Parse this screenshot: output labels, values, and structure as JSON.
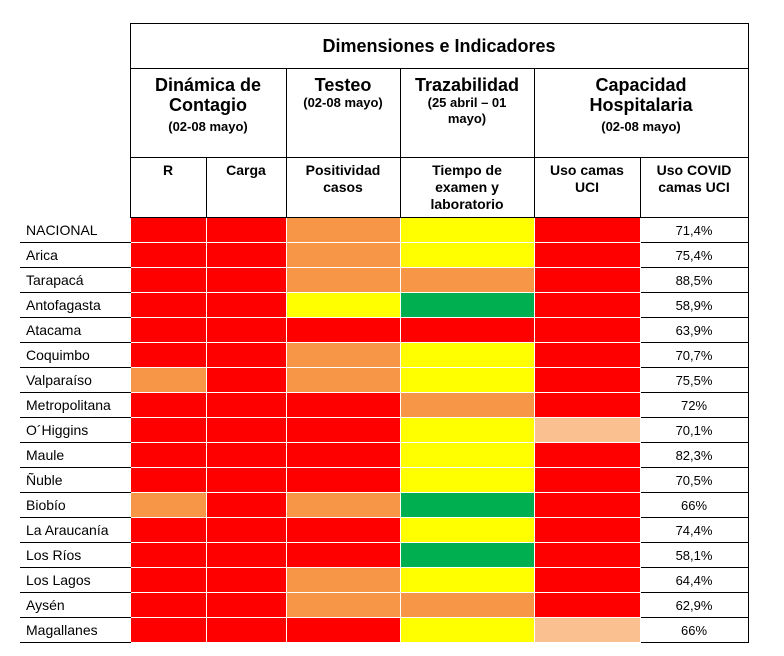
{
  "title": "Dimensiones e Indicadores",
  "groups": [
    {
      "name": "Dinámica de Contagio",
      "period": "(02-08 mayo)"
    },
    {
      "name": "Testeo",
      "period": "(02-08 mayo)"
    },
    {
      "name": "Trazabilidad",
      "period": "(25 abril – 01 mayo)"
    },
    {
      "name": "Capacidad Hospitalaria",
      "period": "(02-08 mayo)"
    }
  ],
  "columns": [
    "R",
    "Carga",
    "Positividad casos",
    "Tiempo de examen y laboratorio",
    "Uso camas UCI",
    "Uso COVID camas UCI"
  ],
  "palette": {
    "red": "#ff0000",
    "orange": "#f79646",
    "yellow": "#ffff00",
    "green": "#00b050",
    "light": "#fac090"
  },
  "rows": [
    {
      "name": "NACIONAL",
      "colors": [
        "red",
        "red",
        "orange",
        "yellow",
        "red"
      ],
      "covid_uci": "71,4%"
    },
    {
      "name": "Arica",
      "colors": [
        "red",
        "red",
        "orange",
        "yellow",
        "red"
      ],
      "covid_uci": "75,4%"
    },
    {
      "name": "Tarapacá",
      "colors": [
        "red",
        "red",
        "orange",
        "orange",
        "red"
      ],
      "covid_uci": "88,5%"
    },
    {
      "name": "Antofagasta",
      "colors": [
        "red",
        "red",
        "yellow",
        "green",
        "red"
      ],
      "covid_uci": "58,9%"
    },
    {
      "name": "Atacama",
      "colors": [
        "red",
        "red",
        "red",
        "red",
        "red"
      ],
      "covid_uci": "63,9%"
    },
    {
      "name": "Coquimbo",
      "colors": [
        "red",
        "red",
        "orange",
        "yellow",
        "red"
      ],
      "covid_uci": "70,7%"
    },
    {
      "name": "Valparaíso",
      "colors": [
        "orange",
        "red",
        "orange",
        "yellow",
        "red"
      ],
      "covid_uci": "75,5%"
    },
    {
      "name": "Metropolitana",
      "colors": [
        "red",
        "red",
        "red",
        "orange",
        "red"
      ],
      "covid_uci": "72%"
    },
    {
      "name": "O´Higgins",
      "colors": [
        "red",
        "red",
        "red",
        "yellow",
        "light"
      ],
      "covid_uci": "70,1%"
    },
    {
      "name": "Maule",
      "colors": [
        "red",
        "red",
        "red",
        "yellow",
        "red"
      ],
      "covid_uci": "82,3%"
    },
    {
      "name": "Ñuble",
      "colors": [
        "red",
        "red",
        "red",
        "yellow",
        "red"
      ],
      "covid_uci": "70,5%"
    },
    {
      "name": "Biobío",
      "colors": [
        "orange",
        "red",
        "orange",
        "green",
        "red"
      ],
      "covid_uci": "66%"
    },
    {
      "name": "La Araucanía",
      "colors": [
        "red",
        "red",
        "red",
        "yellow",
        "red"
      ],
      "covid_uci": "74,4%"
    },
    {
      "name": "Los Ríos",
      "colors": [
        "red",
        "red",
        "red",
        "green",
        "red"
      ],
      "covid_uci": "58,1%"
    },
    {
      "name": "Los Lagos",
      "colors": [
        "red",
        "red",
        "orange",
        "yellow",
        "red"
      ],
      "covid_uci": "64,4%"
    },
    {
      "name": "Aysén",
      "colors": [
        "red",
        "red",
        "orange",
        "orange",
        "red"
      ],
      "covid_uci": "62,9%"
    },
    {
      "name": "Magallanes",
      "colors": [
        "red",
        "red",
        "red",
        "yellow",
        "light"
      ],
      "covid_uci": "66%"
    }
  ]
}
